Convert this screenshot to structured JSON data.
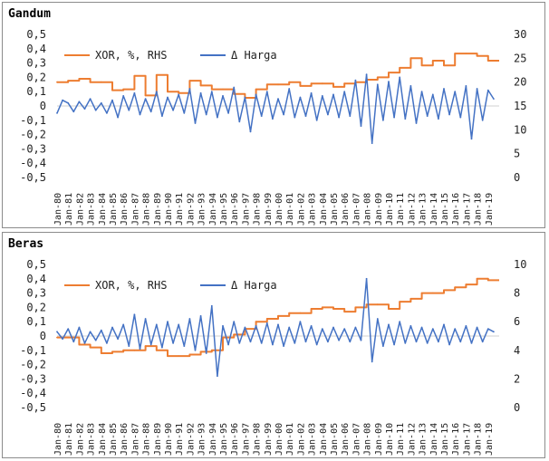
{
  "chart_data": [
    {
      "type": "line",
      "title": "Gandum",
      "x_labels": [
        "Jan-80",
        "Jan-81",
        "Jan-82",
        "Jan-83",
        "Jan-84",
        "Jan-85",
        "Jan-86",
        "Jan-87",
        "Jan-88",
        "Jan-89",
        "Jan-90",
        "Jan-91",
        "Jan-92",
        "Jan-93",
        "Jan-94",
        "Jan-95",
        "Jan-96",
        "Jan-97",
        "Jan-98",
        "Jan-99",
        "Jan-00",
        "Jan-01",
        "Jan-02",
        "Jan-03",
        "Jan-04",
        "Jan-05",
        "Jan-06",
        "Jan-07",
        "Jan-08",
        "Jan-09",
        "Jan-10",
        "Jan-11",
        "Jan-12",
        "Jan-13",
        "Jan-14",
        "Jan-15",
        "Jan-16",
        "Jan-17",
        "Jan-18",
        "Jan-19"
      ],
      "left_axis": {
        "ylim": [
          -0.5,
          0.5
        ],
        "ticks": [
          "-0,5",
          "-0,4",
          "-0,3",
          "-0,2",
          "-0,1",
          "0",
          "0,1",
          "0,2",
          "0,3",
          "0,4",
          "0,5"
        ]
      },
      "right_axis": {
        "ylim": [
          0,
          30
        ],
        "ticks": [
          "0",
          "5",
          "10",
          "15",
          "20",
          "25",
          "30"
        ]
      },
      "legend_position": "top-left",
      "grid": false,
      "series": [
        {
          "name": "XOR, %, RHS",
          "axis": "right",
          "color": "#ED7D31",
          "x": [
            1980,
            1981,
            1982,
            1983,
            1984,
            1985,
            1986,
            1987,
            1988,
            1989,
            1990,
            1991,
            1992,
            1993,
            1994,
            1995,
            1996,
            1997,
            1998,
            1999,
            2000,
            2001,
            2002,
            2003,
            2004,
            2005,
            2006,
            2007,
            2008,
            2009,
            2010,
            2011,
            2012,
            2013,
            2014,
            2015,
            2016,
            2017,
            2018,
            2019
          ],
          "values": [
            20.0,
            20.3,
            20.7,
            20.0,
            20.0,
            18.3,
            18.5,
            21.3,
            17.2,
            21.5,
            18.0,
            17.7,
            20.3,
            19.3,
            18.5,
            18.5,
            17.5,
            16.7,
            18.5,
            19.5,
            19.5,
            20.0,
            19.2,
            19.7,
            19.7,
            19.0,
            19.7,
            20.0,
            20.5,
            21.0,
            22.0,
            23.0,
            25.0,
            23.5,
            24.5,
            23.5,
            26.0,
            26.0,
            25.5,
            24.5
          ]
        },
        {
          "name": "Δ Harga",
          "axis": "left",
          "color": "#4472C4",
          "x": [
            1980,
            1980.5,
            1981,
            1981.5,
            1982,
            1982.5,
            1983,
            1983.5,
            1984,
            1984.5,
            1985,
            1985.5,
            1986,
            1986.5,
            1987,
            1987.5,
            1988,
            1988.5,
            1989,
            1989.5,
            1990,
            1990.5,
            1991,
            1991.5,
            1992,
            1992.5,
            1993,
            1993.5,
            1994,
            1994.5,
            1995,
            1995.5,
            1996,
            1996.5,
            1997,
            1997.5,
            1998,
            1998.5,
            1999,
            1999.5,
            2000,
            2000.5,
            2001,
            2001.5,
            2002,
            2002.5,
            2003,
            2003.5,
            2004,
            2004.5,
            2005,
            2005.5,
            2006,
            2006.5,
            2007,
            2007.5,
            2008,
            2008.5,
            2009,
            2009.5,
            2010,
            2010.5,
            2011,
            2011.5,
            2012,
            2012.5,
            2013,
            2013.5,
            2014,
            2014.5,
            2015,
            2015.5,
            2016,
            2016.5,
            2017,
            2017.5,
            2018,
            2018.5,
            2019,
            2019.5
          ],
          "values": [
            -0.05,
            0.04,
            0.02,
            -0.04,
            0.03,
            -0.02,
            0.05,
            -0.03,
            0.02,
            -0.05,
            0.04,
            -0.08,
            0.07,
            -0.03,
            0.09,
            -0.06,
            0.05,
            -0.04,
            0.1,
            -0.07,
            0.06,
            -0.03,
            0.08,
            -0.05,
            0.12,
            -0.12,
            0.09,
            -0.06,
            0.1,
            -0.08,
            0.07,
            -0.05,
            0.13,
            -0.11,
            0.06,
            -0.18,
            0.08,
            -0.07,
            0.1,
            -0.09,
            0.05,
            -0.06,
            0.12,
            -0.08,
            0.06,
            -0.07,
            0.09,
            -0.1,
            0.07,
            -0.06,
            0.08,
            -0.08,
            0.1,
            -0.07,
            0.18,
            -0.14,
            0.22,
            -0.26,
            0.15,
            -0.1,
            0.17,
            -0.08,
            0.2,
            -0.09,
            0.14,
            -0.12,
            0.1,
            -0.07,
            0.08,
            -0.09,
            0.12,
            -0.06,
            0.1,
            -0.08,
            0.14,
            -0.23,
            0.12,
            -0.1,
            0.11,
            0.05
          ]
        }
      ]
    },
    {
      "type": "line",
      "title": "Beras",
      "x_labels": [
        "Jan-80",
        "Jan-81",
        "Jan-82",
        "Jan-83",
        "Jan-84",
        "Jan-85",
        "Jan-86",
        "Jan-87",
        "Jan-88",
        "Jan-89",
        "Jan-90",
        "Jan-91",
        "Jan-92",
        "Jan-93",
        "Jan-94",
        "Jan-95",
        "Jan-96",
        "Jan-97",
        "Jan-98",
        "Jan-99",
        "Jan-00",
        "Jan-01",
        "Jan-02",
        "Jan-03",
        "Jan-04",
        "Jan-05",
        "Jan-06",
        "Jan-07",
        "Jan-08",
        "Jan-09",
        "Jan-10",
        "Jan-11",
        "Jan-12",
        "Jan-13",
        "Jan-14",
        "Jan-15",
        "Jan-16",
        "Jan-17",
        "Jan-18",
        "Jan-19"
      ],
      "left_axis": {
        "ylim": [
          -0.5,
          0.5
        ],
        "ticks": [
          "-0,5",
          "-0,4",
          "-0,3",
          "-0,2",
          "-0,1",
          "0",
          "0,1",
          "0,2",
          "0,3",
          "0,4",
          "0,5"
        ]
      },
      "right_axis": {
        "ylim": [
          0,
          10
        ],
        "ticks": [
          "0",
          "2",
          "4",
          "6",
          "8",
          "10"
        ]
      },
      "legend_position": "top-left",
      "grid": false,
      "series": [
        {
          "name": "XOR, %, RHS",
          "axis": "right",
          "color": "#ED7D31",
          "x": [
            1980,
            1981,
            1982,
            1983,
            1984,
            1985,
            1986,
            1987,
            1988,
            1989,
            1990,
            1991,
            1992,
            1993,
            1994,
            1995,
            1996,
            1997,
            1998,
            1999,
            2000,
            2001,
            2002,
            2003,
            2004,
            2005,
            2006,
            2007,
            2008,
            2009,
            2010,
            2011,
            2012,
            2013,
            2014,
            2015,
            2016,
            2017,
            2018,
            2019
          ],
          "values": [
            4.9,
            4.9,
            4.4,
            4.2,
            3.8,
            3.9,
            4.0,
            4.0,
            4.3,
            4.0,
            3.6,
            3.6,
            3.7,
            3.9,
            4.0,
            4.9,
            5.1,
            5.5,
            6.0,
            6.2,
            6.4,
            6.6,
            6.6,
            6.9,
            7.0,
            6.9,
            6.7,
            7.0,
            7.2,
            7.2,
            6.9,
            7.4,
            7.6,
            8.0,
            8.0,
            8.2,
            8.4,
            8.6,
            9.0,
            8.9
          ]
        },
        {
          "name": "Δ Harga",
          "axis": "left",
          "color": "#4472C4",
          "x": [
            1980,
            1980.5,
            1981,
            1981.5,
            1982,
            1982.5,
            1983,
            1983.5,
            1984,
            1984.5,
            1985,
            1985.5,
            1986,
            1986.5,
            1987,
            1987.5,
            1988,
            1988.5,
            1989,
            1989.5,
            1990,
            1990.5,
            1991,
            1991.5,
            1992,
            1992.5,
            1993,
            1993.5,
            1994,
            1994.5,
            1995,
            1995.5,
            1996,
            1996.5,
            1997,
            1997.5,
            1998,
            1998.5,
            1999,
            1999.5,
            2000,
            2000.5,
            2001,
            2001.5,
            2002,
            2002.5,
            2003,
            2003.5,
            2004,
            2004.5,
            2005,
            2005.5,
            2006,
            2006.5,
            2007,
            2007.5,
            2008,
            2008.5,
            2009,
            2009.5,
            2010,
            2010.5,
            2011,
            2011.5,
            2012,
            2012.5,
            2013,
            2013.5,
            2014,
            2014.5,
            2015,
            2015.5,
            2016,
            2016.5,
            2017,
            2017.5,
            2018,
            2018.5,
            2019,
            2019.5
          ],
          "values": [
            0.03,
            -0.02,
            0.05,
            -0.04,
            0.06,
            -0.05,
            0.03,
            -0.03,
            0.04,
            -0.05,
            0.06,
            -0.02,
            0.08,
            -0.07,
            0.15,
            -0.09,
            0.12,
            -0.06,
            0.08,
            -0.08,
            0.1,
            -0.05,
            0.08,
            -0.07,
            0.12,
            -0.1,
            0.14,
            -0.12,
            0.21,
            -0.28,
            0.07,
            -0.06,
            0.1,
            -0.05,
            0.06,
            -0.04,
            0.07,
            -0.05,
            0.09,
            -0.06,
            0.08,
            -0.07,
            0.06,
            -0.05,
            0.1,
            -0.04,
            0.07,
            -0.06,
            0.05,
            -0.04,
            0.06,
            -0.03,
            0.05,
            -0.04,
            0.06,
            -0.03,
            0.4,
            -0.18,
            0.12,
            -0.07,
            0.08,
            -0.06,
            0.1,
            -0.05,
            0.07,
            -0.04,
            0.06,
            -0.05,
            0.05,
            -0.04,
            0.08,
            -0.06,
            0.05,
            -0.04,
            0.07,
            -0.05,
            0.06,
            -0.04,
            0.05,
            0.03
          ]
        }
      ]
    }
  ]
}
